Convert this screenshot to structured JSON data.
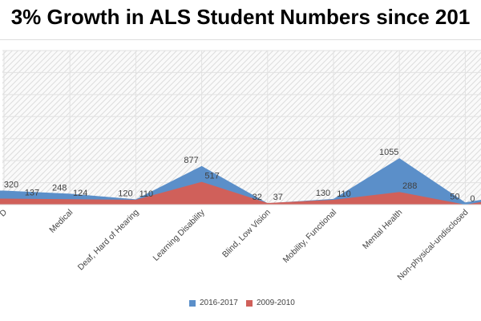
{
  "chart_data": {
    "type": "area",
    "title": "3% Growth in ALS Student Numbers since 201",
    "categories": [
      "D",
      "Medical",
      "Deaf, Hard of Hearing",
      "Learning Disability",
      "Blind, Low Vision",
      "Mobility, Functional",
      "Mental Health",
      "Non-physical-undisclosed"
    ],
    "series": [
      {
        "name": "2016-2017",
        "color": "#5B8FC9",
        "values": [
          320,
          248,
          120,
          877,
          32,
          130,
          1055,
          50
        ]
      },
      {
        "name": "2009-2010",
        "color": "#D0605A",
        "values": [
          137,
          124,
          110,
          517,
          37,
          110,
          288,
          0
        ]
      }
    ],
    "ylim": [
      0,
      3500
    ],
    "y_gridlines": [
      500,
      1000,
      1500,
      2000,
      2500,
      3000,
      3500
    ],
    "grid": true,
    "legend_position": "bottom",
    "plot_background": "diagonal hatch"
  }
}
